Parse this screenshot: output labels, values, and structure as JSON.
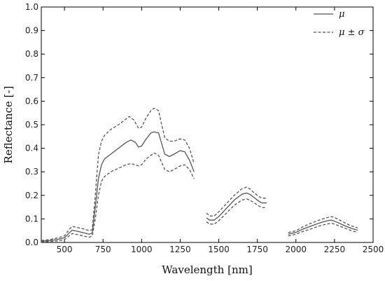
{
  "chart_data": {
    "type": "line",
    "xlabel": "Wavelength [nm]",
    "ylabel": "Reflectance [-]",
    "xlim": [
      350,
      2500
    ],
    "ylim": [
      0.0,
      1.0
    ],
    "xticks": [
      "500",
      "750",
      "1000",
      "1250",
      "1500",
      "1750",
      "2000",
      "2250",
      "2500"
    ],
    "yticks": [
      "0.0",
      "0.1",
      "0.2",
      "0.3",
      "0.4",
      "0.5",
      "0.6",
      "0.7",
      "0.8",
      "0.9",
      "1.0"
    ],
    "grid": false,
    "legend_position": "top-right",
    "series": [
      {
        "name": "μ",
        "style": "solid",
        "color": "#555555",
        "segments": [
          [
            [
              350,
              0.005
            ],
            [
              400,
              0.008
            ],
            [
              450,
              0.012
            ],
            [
              500,
              0.02
            ],
            [
              530,
              0.04
            ],
            [
              550,
              0.052
            ],
            [
              580,
              0.048
            ],
            [
              620,
              0.042
            ],
            [
              660,
              0.035
            ],
            [
              680,
              0.04
            ],
            [
              700,
              0.15
            ],
            [
              720,
              0.27
            ],
            [
              740,
              0.33
            ],
            [
              760,
              0.355
            ],
            [
              800,
              0.375
            ],
            [
              850,
              0.4
            ],
            [
              900,
              0.425
            ],
            [
              930,
              0.435
            ],
            [
              960,
              0.425
            ],
            [
              980,
              0.405
            ],
            [
              1000,
              0.41
            ],
            [
              1030,
              0.44
            ],
            [
              1060,
              0.465
            ],
            [
              1080,
              0.47
            ],
            [
              1110,
              0.465
            ],
            [
              1130,
              0.42
            ],
            [
              1150,
              0.375
            ],
            [
              1180,
              0.365
            ],
            [
              1210,
              0.375
            ],
            [
              1250,
              0.39
            ],
            [
              1280,
              0.385
            ],
            [
              1310,
              0.35
            ],
            [
              1340,
              0.3
            ]
          ],
          [
            [
              1420,
              0.105
            ],
            [
              1440,
              0.095
            ],
            [
              1470,
              0.095
            ],
            [
              1500,
              0.11
            ],
            [
              1550,
              0.145
            ],
            [
              1600,
              0.18
            ],
            [
              1650,
              0.205
            ],
            [
              1680,
              0.21
            ],
            [
              1700,
              0.205
            ],
            [
              1730,
              0.19
            ],
            [
              1760,
              0.175
            ],
            [
              1780,
              0.168
            ],
            [
              1810,
              0.168
            ]
          ],
          [
            [
              1950,
              0.035
            ],
            [
              2000,
              0.043
            ],
            [
              2050,
              0.058
            ],
            [
              2100,
              0.07
            ],
            [
              2150,
              0.082
            ],
            [
              2200,
              0.092
            ],
            [
              2230,
              0.095
            ],
            [
              2270,
              0.085
            ],
            [
              2320,
              0.07
            ],
            [
              2360,
              0.06
            ],
            [
              2400,
              0.052
            ]
          ]
        ]
      },
      {
        "name": "μ ± σ",
        "style": "dashed",
        "color": "#555555",
        "segments": [
          [
            [
              350,
              0.008
            ],
            [
              400,
              0.012
            ],
            [
              450,
              0.018
            ],
            [
              500,
              0.028
            ],
            [
              530,
              0.055
            ],
            [
              550,
              0.068
            ],
            [
              580,
              0.064
            ],
            [
              620,
              0.058
            ],
            [
              660,
              0.05
            ],
            [
              680,
              0.055
            ],
            [
              700,
              0.2
            ],
            [
              720,
              0.37
            ],
            [
              740,
              0.43
            ],
            [
              760,
              0.455
            ],
            [
              800,
              0.48
            ],
            [
              850,
              0.5
            ],
            [
              900,
              0.525
            ],
            [
              920,
              0.535
            ],
            [
              950,
              0.52
            ],
            [
              980,
              0.485
            ],
            [
              1000,
              0.49
            ],
            [
              1030,
              0.53
            ],
            [
              1060,
              0.56
            ],
            [
              1080,
              0.57
            ],
            [
              1110,
              0.56
            ],
            [
              1130,
              0.5
            ],
            [
              1150,
              0.445
            ],
            [
              1180,
              0.43
            ],
            [
              1210,
              0.43
            ],
            [
              1250,
              0.44
            ],
            [
              1280,
              0.435
            ],
            [
              1310,
              0.4
            ],
            [
              1340,
              0.335
            ]
          ],
          [
            [
              350,
              0.002
            ],
            [
              400,
              0.004
            ],
            [
              450,
              0.006
            ],
            [
              500,
              0.012
            ],
            [
              530,
              0.028
            ],
            [
              550,
              0.038
            ],
            [
              580,
              0.034
            ],
            [
              620,
              0.028
            ],
            [
              660,
              0.022
            ],
            [
              680,
              0.028
            ],
            [
              700,
              0.1
            ],
            [
              720,
              0.2
            ],
            [
              740,
              0.26
            ],
            [
              760,
              0.28
            ],
            [
              800,
              0.3
            ],
            [
              850,
              0.315
            ],
            [
              900,
              0.33
            ],
            [
              930,
              0.335
            ],
            [
              960,
              0.33
            ],
            [
              980,
              0.325
            ],
            [
              1000,
              0.33
            ],
            [
              1030,
              0.355
            ],
            [
              1060,
              0.37
            ],
            [
              1080,
              0.38
            ],
            [
              1110,
              0.37
            ],
            [
              1130,
              0.34
            ],
            [
              1150,
              0.31
            ],
            [
              1180,
              0.3
            ],
            [
              1210,
              0.31
            ],
            [
              1250,
              0.325
            ],
            [
              1280,
              0.33
            ],
            [
              1310,
              0.31
            ],
            [
              1340,
              0.27
            ]
          ],
          [
            [
              1420,
              0.125
            ],
            [
              1440,
              0.113
            ],
            [
              1470,
              0.112
            ],
            [
              1500,
              0.13
            ],
            [
              1550,
              0.165
            ],
            [
              1600,
              0.2
            ],
            [
              1650,
              0.228
            ],
            [
              1680,
              0.235
            ],
            [
              1700,
              0.228
            ],
            [
              1730,
              0.21
            ],
            [
              1760,
              0.195
            ],
            [
              1780,
              0.188
            ],
            [
              1810,
              0.188
            ]
          ],
          [
            [
              1420,
              0.088
            ],
            [
              1440,
              0.078
            ],
            [
              1470,
              0.078
            ],
            [
              1500,
              0.092
            ],
            [
              1550,
              0.125
            ],
            [
              1600,
              0.158
            ],
            [
              1650,
              0.18
            ],
            [
              1680,
              0.185
            ],
            [
              1700,
              0.18
            ],
            [
              1730,
              0.168
            ],
            [
              1760,
              0.155
            ],
            [
              1780,
              0.148
            ],
            [
              1810,
              0.148
            ]
          ],
          [
            [
              1950,
              0.042
            ],
            [
              2000,
              0.05
            ],
            [
              2050,
              0.068
            ],
            [
              2100,
              0.082
            ],
            [
              2150,
              0.095
            ],
            [
              2200,
              0.105
            ],
            [
              2230,
              0.11
            ],
            [
              2270,
              0.1
            ],
            [
              2320,
              0.082
            ],
            [
              2360,
              0.07
            ],
            [
              2400,
              0.062
            ]
          ],
          [
            [
              1950,
              0.028
            ],
            [
              2000,
              0.035
            ],
            [
              2050,
              0.048
            ],
            [
              2100,
              0.058
            ],
            [
              2150,
              0.07
            ],
            [
              2200,
              0.078
            ],
            [
              2230,
              0.082
            ],
            [
              2270,
              0.073
            ],
            [
              2320,
              0.06
            ],
            [
              2360,
              0.05
            ],
            [
              2400,
              0.043
            ]
          ]
        ]
      }
    ]
  }
}
